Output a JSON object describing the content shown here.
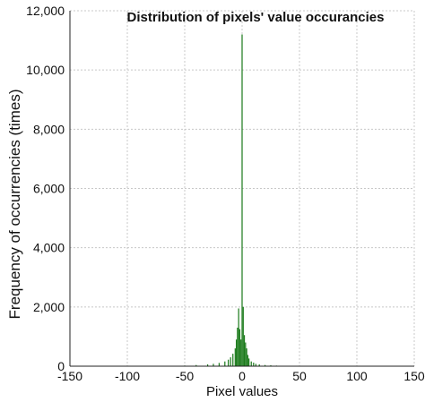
{
  "chart_data": {
    "type": "bar",
    "title": "Distribution of pixels' value occurancies",
    "xlabel": "Pixel values",
    "ylabel": "Frequency of occurrencies (times)",
    "xlim": [
      -150,
      150
    ],
    "ylim": [
      0,
      12000
    ],
    "x_ticks": [
      -150,
      -100,
      -50,
      0,
      50,
      100,
      150
    ],
    "x_tick_labels": [
      "-150",
      "-100",
      "-50",
      "0",
      "50",
      "100",
      "150"
    ],
    "y_ticks": [
      0,
      2000,
      4000,
      6000,
      8000,
      10000,
      12000
    ],
    "y_tick_labels": [
      "0",
      "2,000",
      "4,000",
      "6,000",
      "8,000",
      "10,000",
      "12,000"
    ],
    "grid": true,
    "bar_color": "#1a7a1a",
    "x": [
      -60,
      -50,
      -40,
      -30,
      -25,
      -20,
      -15,
      -12,
      -10,
      -8,
      -6,
      -5,
      -4,
      -3,
      -2,
      -1,
      0,
      1,
      2,
      3,
      4,
      5,
      6,
      8,
      10,
      12,
      15,
      20,
      25,
      30,
      40,
      50,
      60
    ],
    "values": [
      10,
      20,
      40,
      60,
      80,
      110,
      160,
      220,
      300,
      420,
      600,
      900,
      1300,
      1950,
      1250,
      900,
      11200,
      2000,
      1050,
      800,
      600,
      380,
      260,
      160,
      120,
      80,
      60,
      40,
      30,
      20,
      10,
      5,
      5
    ]
  }
}
